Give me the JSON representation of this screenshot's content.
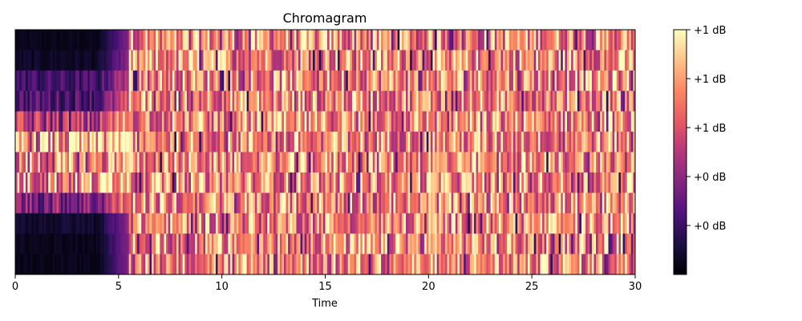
{
  "chart_data": {
    "type": "heatmap",
    "title": "Chromagram",
    "xlabel": "Time",
    "ylabel": "",
    "xlim": [
      0,
      30
    ],
    "x_ticks": [
      0,
      5,
      10,
      15,
      20,
      25,
      30
    ],
    "x_tick_labels": [
      "0",
      "5",
      "10",
      "15",
      "20",
      "25",
      "30"
    ],
    "rows": 12,
    "frames": 300,
    "grid": false,
    "colormap": "magma",
    "colorbar": {
      "tick_labels": [
        "+1 dB",
        "+1 dB",
        "+1 dB",
        "+0 dB",
        "+0 dB"
      ],
      "tick_fractions": [
        1.0,
        0.8,
        0.6,
        0.4,
        0.2
      ]
    },
    "intro_end_time": 5.5,
    "intro_row_levels": [
      0.05,
      0.08,
      0.25,
      0.3,
      0.55,
      0.95,
      0.8,
      0.9,
      0.45,
      0.1,
      0.06,
      0.05
    ]
  }
}
